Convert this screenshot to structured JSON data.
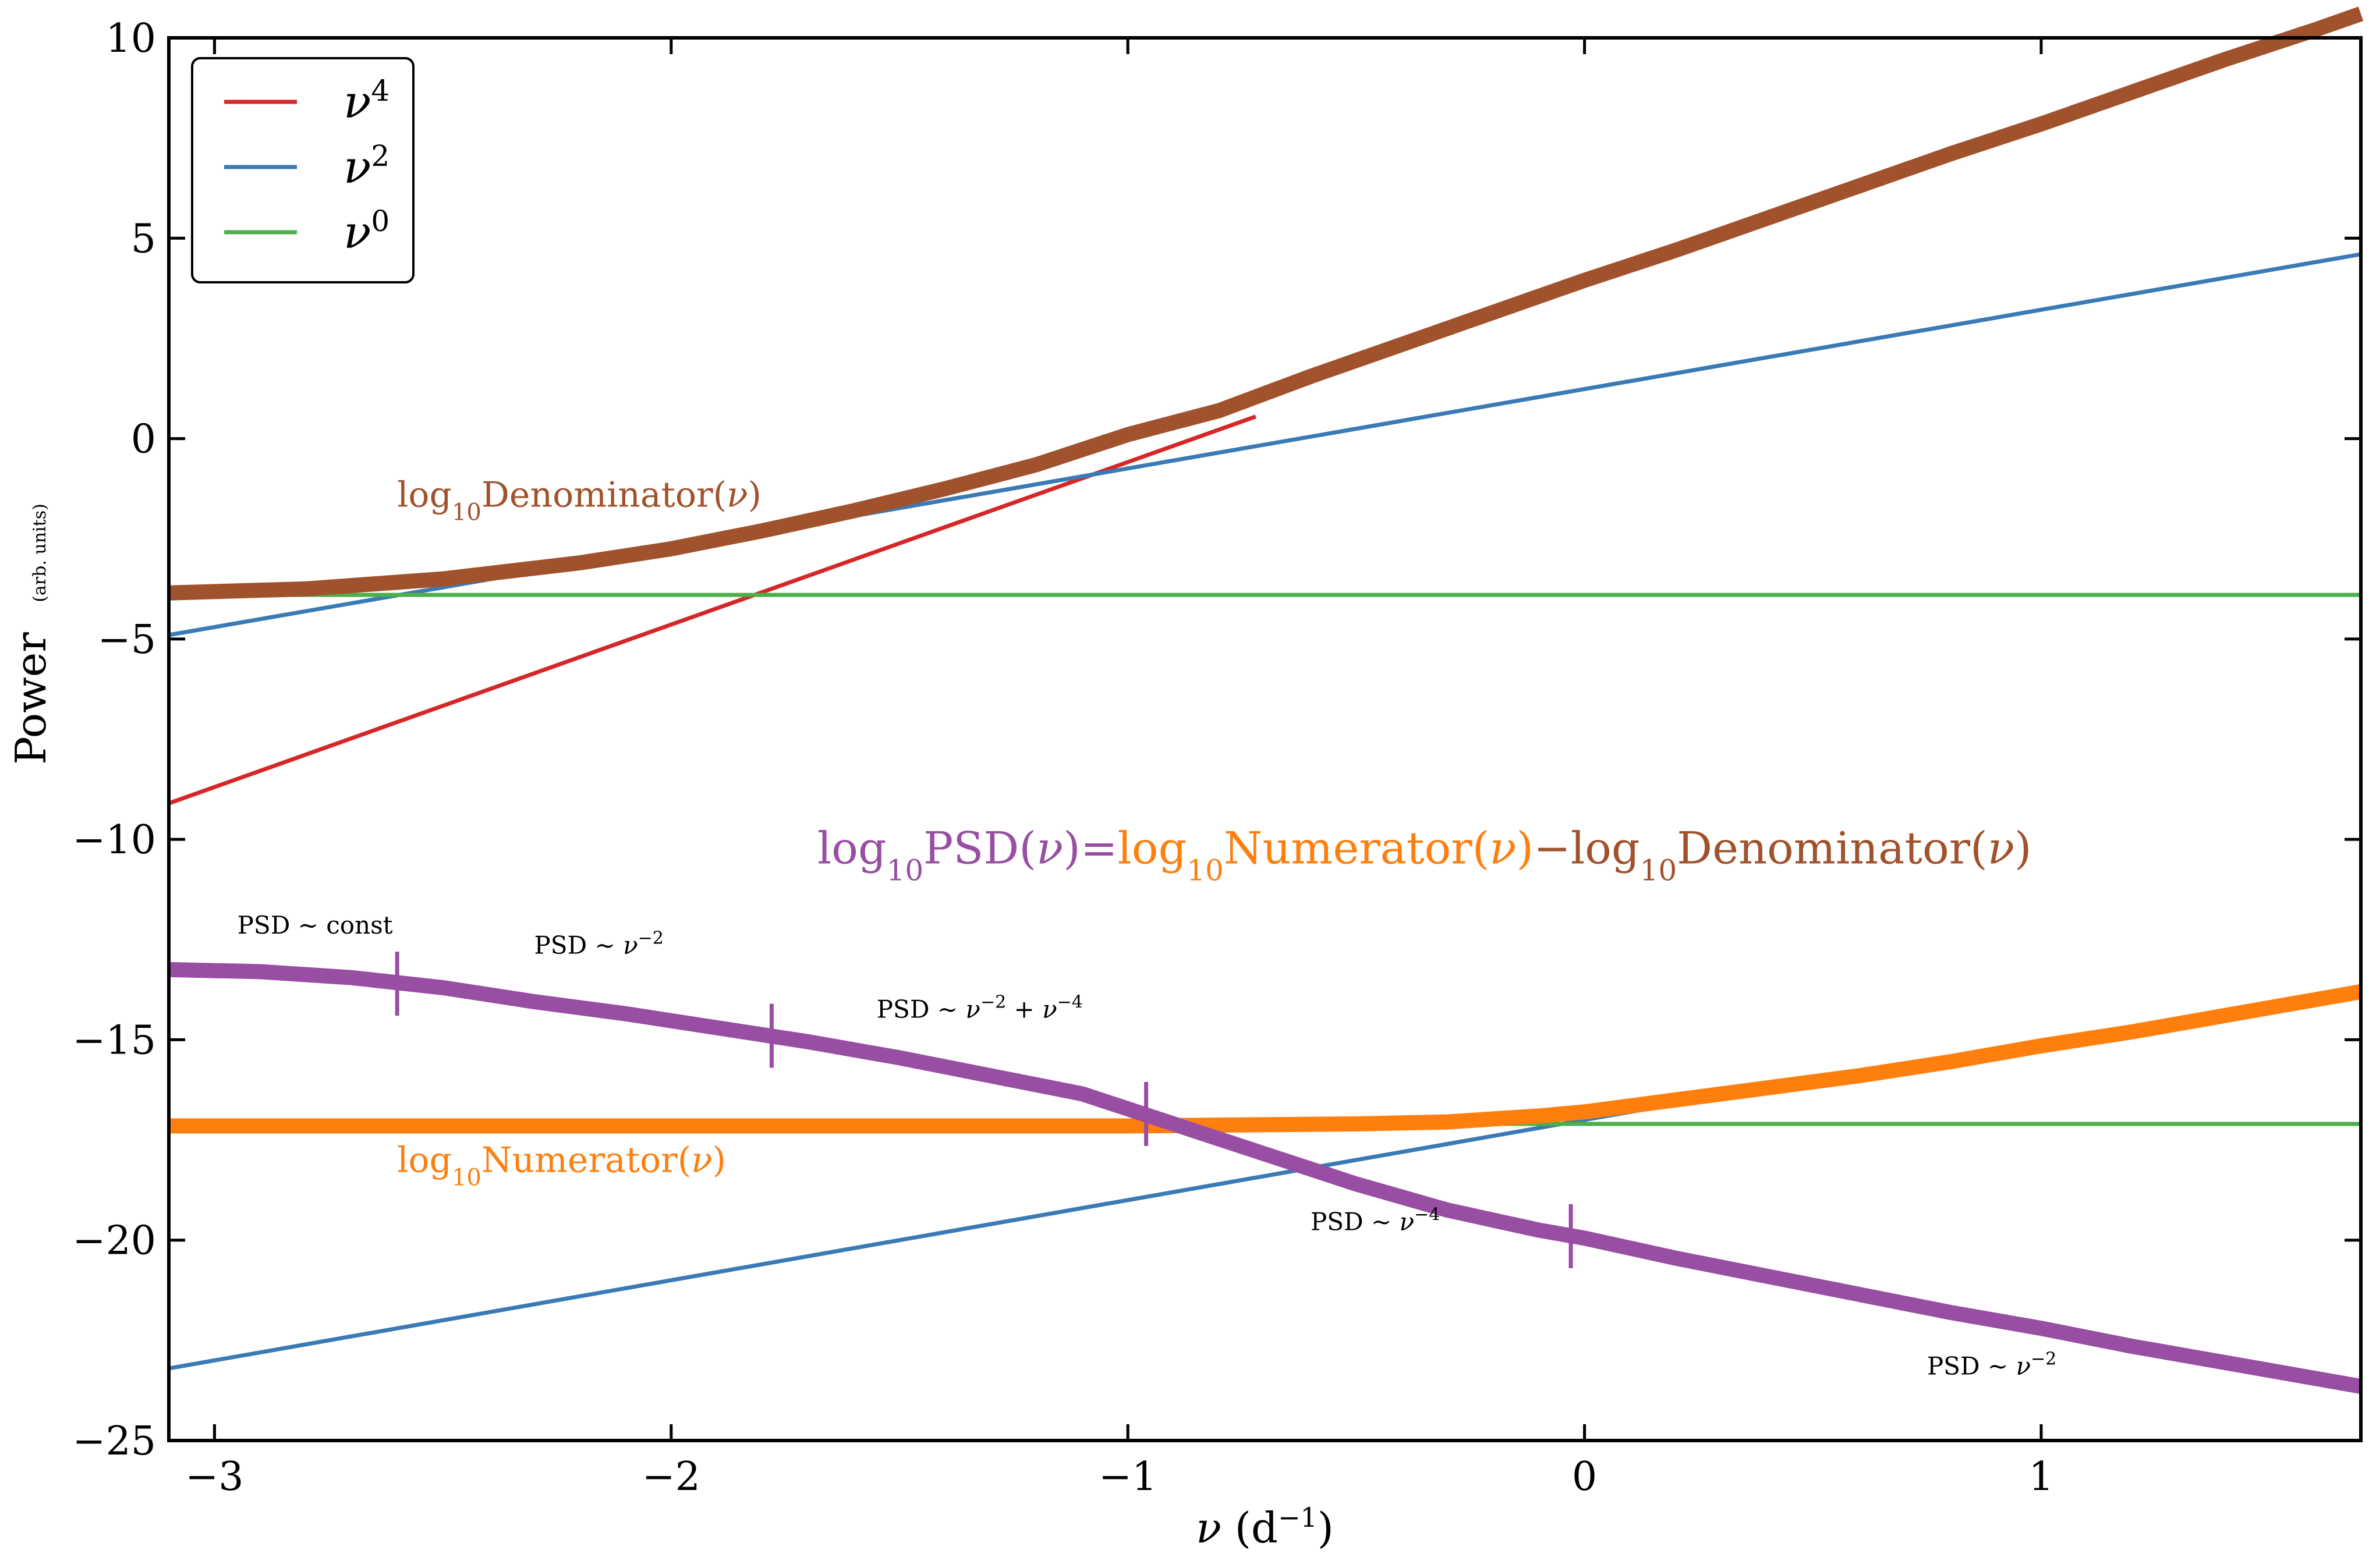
{
  "chart_data": {
    "type": "line",
    "title": "",
    "xlabel": "ν (d⁻¹)",
    "ylabel": "Power",
    "ylabel_sub": "(arb. units)",
    "xlim": [
      -3.1,
      1.7
    ],
    "ylim": [
      -25,
      10
    ],
    "xticks": [
      -3,
      -2,
      -1,
      0,
      1
    ],
    "yticks": [
      -25,
      -20,
      -15,
      -10,
      -5,
      0,
      5,
      10
    ],
    "tick_labels_x": [
      "−3",
      "−2",
      "−1",
      "0",
      "1"
    ],
    "tick_labels_y": [
      "−25",
      "−20",
      "−15",
      "−10",
      "−5",
      "0",
      "5",
      "10"
    ],
    "legend": {
      "position": "top-left",
      "entries": [
        {
          "base": "ν",
          "sup": "4",
          "color": "#d62728"
        },
        {
          "base": "ν",
          "sup": "2",
          "color": "#3a7ab5"
        },
        {
          "base": "ν",
          "sup": "0",
          "color": "#4daf4a"
        }
      ]
    },
    "series": [
      {
        "name": "ν4",
        "color": "#d62728",
        "role": "denominator-component",
        "x": [
          -3.1,
          -0.72
        ],
        "y": [
          -9.1,
          0.55
        ]
      },
      {
        "name": "ν2",
        "color": "#3a7ab5",
        "role": "denominator-component",
        "x": [
          -3.1,
          1.7
        ],
        "y": [
          -4.9,
          4.6
        ]
      },
      {
        "name": "ν0",
        "color": "#4daf4a",
        "role": "denominator-component",
        "x": [
          -3.1,
          1.7
        ],
        "y": [
          -3.9,
          -3.9
        ]
      },
      {
        "name": "ν2",
        "color": "#3a7ab5",
        "role": "numerator-component",
        "x": [
          -3.1,
          0.3
        ],
        "y": [
          -23.2,
          -16.4
        ]
      },
      {
        "name": "ν0",
        "color": "#4daf4a",
        "role": "numerator-component",
        "x": [
          -3.1,
          1.7
        ],
        "y": [
          -17.1,
          -17.1
        ]
      },
      {
        "name": "log10 Denominator(ν)",
        "color": "#a0522d",
        "width": "thick",
        "x": [
          -3.1,
          -2.8,
          -2.5,
          -2.2,
          -2.0,
          -1.8,
          -1.6,
          -1.4,
          -1.2,
          -1.0,
          -0.8,
          -0.6,
          -0.4,
          -0.2,
          0.0,
          0.2,
          0.4,
          0.6,
          0.8,
          1.0,
          1.2,
          1.4,
          1.6,
          1.7
        ],
        "y": [
          -3.85,
          -3.75,
          -3.5,
          -3.1,
          -2.75,
          -2.3,
          -1.8,
          -1.25,
          -0.65,
          0.1,
          0.7,
          1.55,
          2.35,
          3.15,
          3.95,
          4.7,
          5.5,
          6.3,
          7.1,
          7.85,
          8.65,
          9.45,
          10.2,
          10.6
        ]
      },
      {
        "name": "log10 Numerator(ν)",
        "color": "#ff7f0e",
        "width": "thick",
        "x": [
          -3.1,
          -2.0,
          -1.0,
          -0.5,
          -0.3,
          -0.1,
          0.0,
          0.2,
          0.4,
          0.6,
          0.8,
          1.0,
          1.2,
          1.4,
          1.7
        ],
        "y": [
          -17.15,
          -17.15,
          -17.15,
          -17.1,
          -17.05,
          -16.9,
          -16.8,
          -16.5,
          -16.2,
          -15.9,
          -15.55,
          -15.15,
          -14.8,
          -14.4,
          -13.8
        ]
      },
      {
        "name": "log10 PSD(ν)",
        "color": "#984ea3",
        "width": "thick",
        "x": [
          -3.1,
          -2.9,
          -2.7,
          -2.5,
          -2.3,
          -2.1,
          -1.9,
          -1.7,
          -1.5,
          -1.3,
          -1.1,
          -0.9,
          -0.7,
          -0.5,
          -0.3,
          -0.1,
          0.0,
          0.2,
          0.4,
          0.6,
          0.8,
          1.0,
          1.2,
          1.4,
          1.7
        ],
        "y": [
          -13.25,
          -13.3,
          -13.45,
          -13.7,
          -14.05,
          -14.35,
          -14.7,
          -15.05,
          -15.45,
          -15.9,
          -16.35,
          -17.1,
          -17.85,
          -18.6,
          -19.25,
          -19.75,
          -19.95,
          -20.45,
          -20.9,
          -21.35,
          -21.8,
          -22.2,
          -22.65,
          -23.05,
          -23.65
        ]
      }
    ],
    "break_markers": {
      "color": "#984ea3",
      "x": [
        -2.6,
        -1.78,
        -0.96,
        -0.03
      ],
      "y": [
        -13.6,
        -14.9,
        -16.85,
        -19.9
      ]
    },
    "curve_labels": [
      {
        "text_base": "log",
        "text_sub": "10",
        "text_rest": "Denominator(ν)",
        "color": "#a0522d",
        "x": -2.6,
        "y": -1.7
      },
      {
        "text_base": "log",
        "text_sub": "10",
        "text_rest": "Numerator(ν)",
        "color": "#ff7f0e",
        "x": -2.6,
        "y": -18.3
      }
    ],
    "equation": {
      "parts": [
        {
          "base": "log",
          "sub": "10",
          "rest": "PSD(ν)",
          "color": "#984ea3"
        },
        {
          "text": "=",
          "color": "#984ea3"
        },
        {
          "base": "log",
          "sub": "10",
          "rest": "Numerator(ν)",
          "color": "#ff7f0e"
        },
        {
          "text": "−",
          "color": "#a0522d"
        },
        {
          "base": "log",
          "sub": "10",
          "rest": "Denominator(ν)",
          "color": "#a0522d"
        }
      ],
      "x": -1.68,
      "y": -10.6
    },
    "annotations": [
      {
        "pre": "PSD ∼ const",
        "sup": "",
        "x": -2.95,
        "y": -12.35
      },
      {
        "pre": "PSD ∼ ν",
        "sup": "−2",
        "x": -2.3,
        "y": -12.85
      },
      {
        "pre": "PSD ∼ ν",
        "sup": "−2",
        "mid": " + ν",
        "sup2": "−4",
        "x": -1.55,
        "y": -14.45
      },
      {
        "pre": "PSD ∼ ν",
        "sup": "−4",
        "x": -0.6,
        "y": -19.75
      },
      {
        "pre": "PSD ∼ ν",
        "sup": "−2",
        "x": 0.75,
        "y": -23.35
      }
    ]
  }
}
